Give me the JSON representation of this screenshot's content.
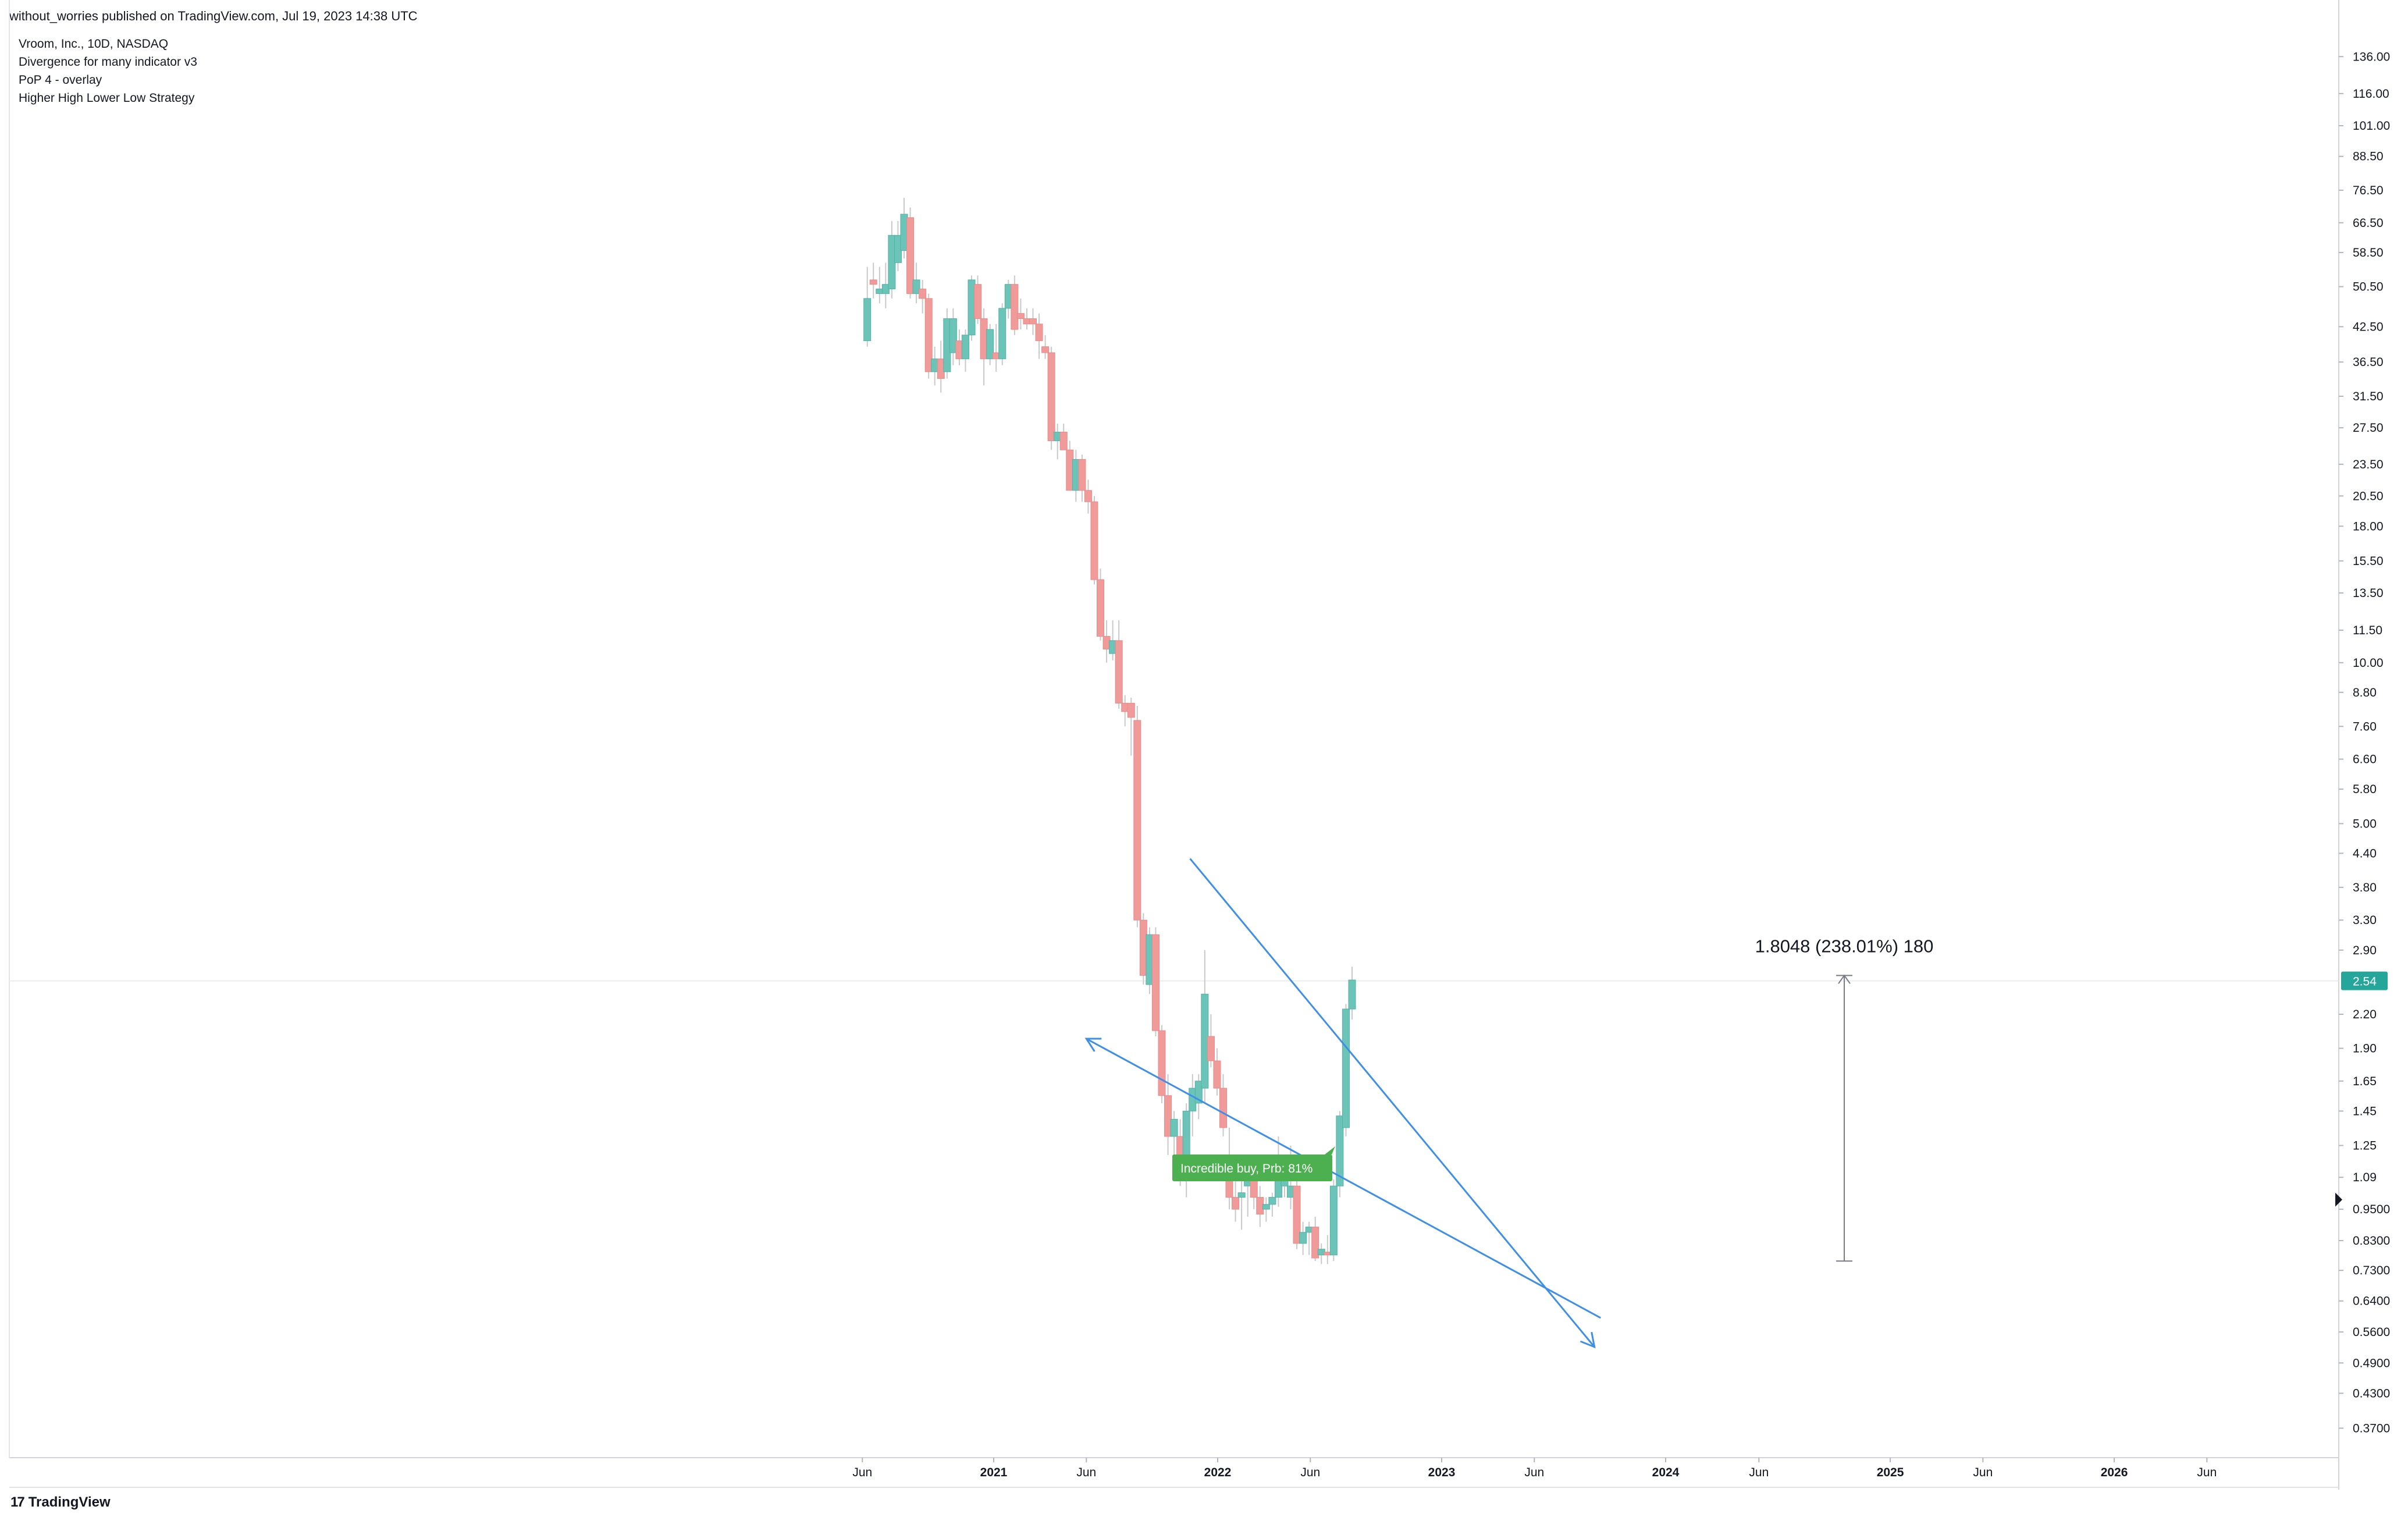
{
  "header": {
    "published": "without_worries published on TradingView.com, Jul 19, 2023 14:38 UTC"
  },
  "legend": {
    "symbol": "Vroom, Inc., 10D, NASDAQ",
    "indicators": [
      "Divergence for many indicator v3",
      "PoP 4 - overlay",
      "Higher High Lower Low Strategy"
    ]
  },
  "footer": {
    "brand": "TradingView"
  },
  "colors": {
    "up": "#6cc4b8",
    "down": "#f09a9a",
    "line": "#3d8fe8",
    "badge": "#4caf50",
    "price_tag": "#26a69a",
    "measure": "#787b86"
  },
  "chart_data": {
    "type": "candlestick",
    "y_scale": "log",
    "ylim": [
      0.33,
      157
    ],
    "y_ticks": [
      "136.00",
      "116.00",
      "101.00",
      "88.50",
      "76.50",
      "66.50",
      "58.50",
      "50.50",
      "42.50",
      "36.50",
      "31.50",
      "27.50",
      "23.50",
      "20.50",
      "18.00",
      "15.50",
      "13.50",
      "11.50",
      "10.00",
      "8.80",
      "7.60",
      "6.60",
      "5.80",
      "5.00",
      "4.40",
      "3.80",
      "3.30",
      "2.90",
      "2.20",
      "1.90",
      "1.65",
      "1.45",
      "1.25",
      "1.09",
      "0.9500",
      "0.8300",
      "0.7300",
      "0.6400",
      "0.5600",
      "0.4900",
      "0.4300",
      "0.3700"
    ],
    "x_ticks": [
      {
        "label": "Jun",
        "date": "2020-06-01"
      },
      {
        "label": "2021",
        "date": "2021-01-01",
        "bold": true
      },
      {
        "label": "Jun",
        "date": "2021-06-01"
      },
      {
        "label": "2022",
        "date": "2022-01-01",
        "bold": true
      },
      {
        "label": "Jun",
        "date": "2022-06-01"
      },
      {
        "label": "2023",
        "date": "2023-01-01",
        "bold": true
      },
      {
        "label": "Jun",
        "date": "2023-06-01"
      },
      {
        "label": "2024",
        "date": "2024-01-01",
        "bold": true
      },
      {
        "label": "Jun",
        "date": "2024-06-01"
      },
      {
        "label": "2025",
        "date": "2025-01-01",
        "bold": true
      },
      {
        "label": "Jun",
        "date": "2025-06-01"
      },
      {
        "label": "2026",
        "date": "2026-01-01",
        "bold": true
      },
      {
        "label": "Jun",
        "date": "2026-06-01"
      }
    ],
    "last_price": "2.54",
    "measure_label": "1.8048 (238.01%) 180",
    "measure_range": [
      0.76,
      2.6
    ],
    "signal_label": "Incredible buy, Prb: 81%",
    "trendlines": [
      {
        "from": {
          "date": "2021-11-17",
          "price": 4.3
        },
        "to": {
          "date": "2023-09-07",
          "price": 0.525
        }
      },
      {
        "from": {
          "date": "2021-06-01",
          "price": 1.98
        },
        "to": {
          "date": "2023-09-17",
          "price": 0.595
        }
      }
    ],
    "candles": [
      {
        "date": "2020-06-09",
        "o": 40,
        "h": 55,
        "l": 39,
        "c": 48
      },
      {
        "date": "2020-06-19",
        "o": 52,
        "h": 56,
        "l": 48,
        "c": 51
      },
      {
        "date": "2020-06-29",
        "o": 49,
        "h": 55,
        "l": 47,
        "c": 50
      },
      {
        "date": "2020-07-09",
        "o": 49,
        "h": 56,
        "l": 46,
        "c": 51
      },
      {
        "date": "2020-07-19",
        "o": 50,
        "h": 67,
        "l": 48,
        "c": 63
      },
      {
        "date": "2020-07-29",
        "o": 56,
        "h": 67,
        "l": 54,
        "c": 63
      },
      {
        "date": "2020-08-08",
        "o": 59,
        "h": 74,
        "l": 57,
        "c": 69
      },
      {
        "date": "2020-08-18",
        "o": 68,
        "h": 71,
        "l": 48,
        "c": 49
      },
      {
        "date": "2020-08-28",
        "o": 49,
        "h": 56,
        "l": 47,
        "c": 52
      },
      {
        "date": "2020-09-07",
        "o": 50,
        "h": 52,
        "l": 45,
        "c": 48
      },
      {
        "date": "2020-09-17",
        "o": 48,
        "h": 49,
        "l": 34,
        "c": 35
      },
      {
        "date": "2020-09-27",
        "o": 35,
        "h": 39,
        "l": 33,
        "c": 37
      },
      {
        "date": "2020-10-07",
        "o": 37,
        "h": 40,
        "l": 32,
        "c": 34
      },
      {
        "date": "2020-10-17",
        "o": 35,
        "h": 46,
        "l": 34,
        "c": 44
      },
      {
        "date": "2020-10-27",
        "o": 38,
        "h": 46,
        "l": 36,
        "c": 44
      },
      {
        "date": "2020-11-06",
        "o": 40,
        "h": 42,
        "l": 36,
        "c": 37
      },
      {
        "date": "2020-11-16",
        "o": 37,
        "h": 42,
        "l": 35,
        "c": 41
      },
      {
        "date": "2020-11-26",
        "o": 41,
        "h": 53,
        "l": 40,
        "c": 52
      },
      {
        "date": "2020-12-06",
        "o": 51,
        "h": 53,
        "l": 43,
        "c": 44
      },
      {
        "date": "2020-12-16",
        "o": 44,
        "h": 46,
        "l": 33,
        "c": 37
      },
      {
        "date": "2020-12-26",
        "o": 37,
        "h": 43,
        "l": 36,
        "c": 42
      },
      {
        "date": "2021-01-05",
        "o": 38,
        "h": 43,
        "l": 35,
        "c": 37
      },
      {
        "date": "2021-01-15",
        "o": 37,
        "h": 47,
        "l": 36,
        "c": 46
      },
      {
        "date": "2021-01-25",
        "o": 46,
        "h": 52,
        "l": 44,
        "c": 51
      },
      {
        "date": "2021-02-04",
        "o": 51,
        "h": 53,
        "l": 41,
        "c": 42
      },
      {
        "date": "2021-02-14",
        "o": 45,
        "h": 48,
        "l": 42,
        "c": 44
      },
      {
        "date": "2021-02-24",
        "o": 44,
        "h": 46,
        "l": 42,
        "c": 43
      },
      {
        "date": "2021-03-06",
        "o": 44,
        "h": 46,
        "l": 41,
        "c": 43
      },
      {
        "date": "2021-03-16",
        "o": 43,
        "h": 45,
        "l": 37,
        "c": 40
      },
      {
        "date": "2021-03-26",
        "o": 39,
        "h": 41,
        "l": 37,
        "c": 38
      },
      {
        "date": "2021-04-05",
        "o": 38,
        "h": 39,
        "l": 25,
        "c": 26
      },
      {
        "date": "2021-04-15",
        "o": 26,
        "h": 28,
        "l": 24,
        "c": 27
      },
      {
        "date": "2021-04-25",
        "o": 27,
        "h": 28,
        "l": 25,
        "c": 25
      },
      {
        "date": "2021-05-05",
        "o": 25,
        "h": 26,
        "l": 21,
        "c": 21
      },
      {
        "date": "2021-05-15",
        "o": 21,
        "h": 25,
        "l": 20,
        "c": 24
      },
      {
        "date": "2021-05-25",
        "o": 24,
        "h": 24.5,
        "l": 20,
        "c": 21
      },
      {
        "date": "2021-06-04",
        "o": 21,
        "h": 22,
        "l": 19,
        "c": 20
      },
      {
        "date": "2021-06-14",
        "o": 20,
        "h": 20.5,
        "l": 14,
        "c": 14.3
      },
      {
        "date": "2021-06-24",
        "o": 14.3,
        "h": 15,
        "l": 11,
        "c": 11.2
      },
      {
        "date": "2021-07-04",
        "o": 11.2,
        "h": 12,
        "l": 10,
        "c": 10.6
      },
      {
        "date": "2021-07-14",
        "o": 10.4,
        "h": 12,
        "l": 10.1,
        "c": 11
      },
      {
        "date": "2021-07-24",
        "o": 11,
        "h": 12,
        "l": 8.2,
        "c": 8.4
      },
      {
        "date": "2021-08-03",
        "o": 8.4,
        "h": 8.7,
        "l": 7.6,
        "c": 8.1
      },
      {
        "date": "2021-08-13",
        "o": 8.4,
        "h": 8.6,
        "l": 6.7,
        "c": 7.9
      },
      {
        "date": "2021-08-23",
        "o": 7.8,
        "h": 8.3,
        "l": 3.2,
        "c": 3.3
      },
      {
        "date": "2021-09-02",
        "o": 3.3,
        "h": 3.4,
        "l": 2.5,
        "c": 2.6
      },
      {
        "date": "2021-09-12",
        "o": 2.5,
        "h": 3.2,
        "l": 2.4,
        "c": 3.1
      },
      {
        "date": "2021-09-22",
        "o": 3.1,
        "h": 3.2,
        "l": 2.0,
        "c": 2.05
      },
      {
        "date": "2021-10-02",
        "o": 2.05,
        "h": 2.1,
        "l": 1.5,
        "c": 1.55
      },
      {
        "date": "2021-10-12",
        "o": 1.55,
        "h": 1.7,
        "l": 1.2,
        "c": 1.3
      },
      {
        "date": "2021-10-22",
        "o": 1.3,
        "h": 1.45,
        "l": 1.15,
        "c": 1.4
      },
      {
        "date": "2021-11-01",
        "o": 1.3,
        "h": 1.4,
        "l": 1.05,
        "c": 1.1
      },
      {
        "date": "2021-11-11",
        "o": 1.2,
        "h": 1.5,
        "l": 1.0,
        "c": 1.45
      },
      {
        "date": "2021-11-21",
        "o": 1.45,
        "h": 1.7,
        "l": 1.3,
        "c": 1.6
      },
      {
        "date": "2021-12-01",
        "o": 1.5,
        "h": 1.7,
        "l": 1.4,
        "c": 1.65
      },
      {
        "date": "2021-12-11",
        "o": 1.6,
        "h": 2.9,
        "l": 1.5,
        "c": 2.4
      },
      {
        "date": "2021-12-21",
        "o": 2.0,
        "h": 2.2,
        "l": 1.75,
        "c": 1.8
      },
      {
        "date": "2021-12-31",
        "o": 1.8,
        "h": 1.9,
        "l": 1.55,
        "c": 1.6
      },
      {
        "date": "2022-01-10",
        "o": 1.6,
        "h": 1.7,
        "l": 1.3,
        "c": 1.35
      },
      {
        "date": "2022-01-20",
        "o": 1.2,
        "h": 1.35,
        "l": 0.95,
        "c": 1.0
      },
      {
        "date": "2022-01-30",
        "o": 1.0,
        "h": 1.1,
        "l": 0.9,
        "c": 0.95
      },
      {
        "date": "2022-02-09",
        "o": 1.0,
        "h": 1.1,
        "l": 0.87,
        "c": 1.02
      },
      {
        "date": "2022-02-19",
        "o": 1.05,
        "h": 1.15,
        "l": 0.92,
        "c": 1.1
      },
      {
        "date": "2022-03-01",
        "o": 1.1,
        "h": 1.15,
        "l": 0.95,
        "c": 1.0
      },
      {
        "date": "2022-03-11",
        "o": 1.0,
        "h": 1.05,
        "l": 0.88,
        "c": 0.93
      },
      {
        "date": "2022-03-21",
        "o": 0.95,
        "h": 1.0,
        "l": 0.9,
        "c": 0.97
      },
      {
        "date": "2022-03-31",
        "o": 0.97,
        "h": 1.02,
        "l": 0.92,
        "c": 1.0
      },
      {
        "date": "2022-04-10",
        "o": 1.0,
        "h": 1.3,
        "l": 0.96,
        "c": 1.1
      },
      {
        "date": "2022-04-20",
        "o": 1.05,
        "h": 1.12,
        "l": 1.0,
        "c": 1.1
      },
      {
        "date": "2022-04-30",
        "o": 1.0,
        "h": 1.25,
        "l": 0.95,
        "c": 1.05
      },
      {
        "date": "2022-05-10",
        "o": 1.05,
        "h": 1.1,
        "l": 0.8,
        "c": 0.82
      },
      {
        "date": "2022-05-20",
        "o": 0.82,
        "h": 0.9,
        "l": 0.78,
        "c": 0.86
      },
      {
        "date": "2022-05-30",
        "o": 0.86,
        "h": 0.9,
        "l": 0.78,
        "c": 0.88
      },
      {
        "date": "2022-06-09",
        "o": 0.88,
        "h": 0.92,
        "l": 0.76,
        "c": 0.77
      },
      {
        "date": "2022-06-19",
        "o": 0.78,
        "h": 0.82,
        "l": 0.75,
        "c": 0.8
      },
      {
        "date": "2022-06-29",
        "o": 0.79,
        "h": 0.85,
        "l": 0.75,
        "c": 0.78
      },
      {
        "date": "2022-07-09",
        "o": 0.78,
        "h": 1.08,
        "l": 0.76,
        "c": 1.05
      },
      {
        "date": "2022-07-19",
        "o": 1.05,
        "h": 1.45,
        "l": 1.0,
        "c": 1.42
      },
      {
        "date": "2022-07-29",
        "o": 1.35,
        "h": 2.3,
        "l": 1.3,
        "c": 2.25
      },
      {
        "date": "2022-08-08",
        "o": 2.25,
        "h": 2.7,
        "l": 2.15,
        "c": 2.55
      }
    ]
  }
}
